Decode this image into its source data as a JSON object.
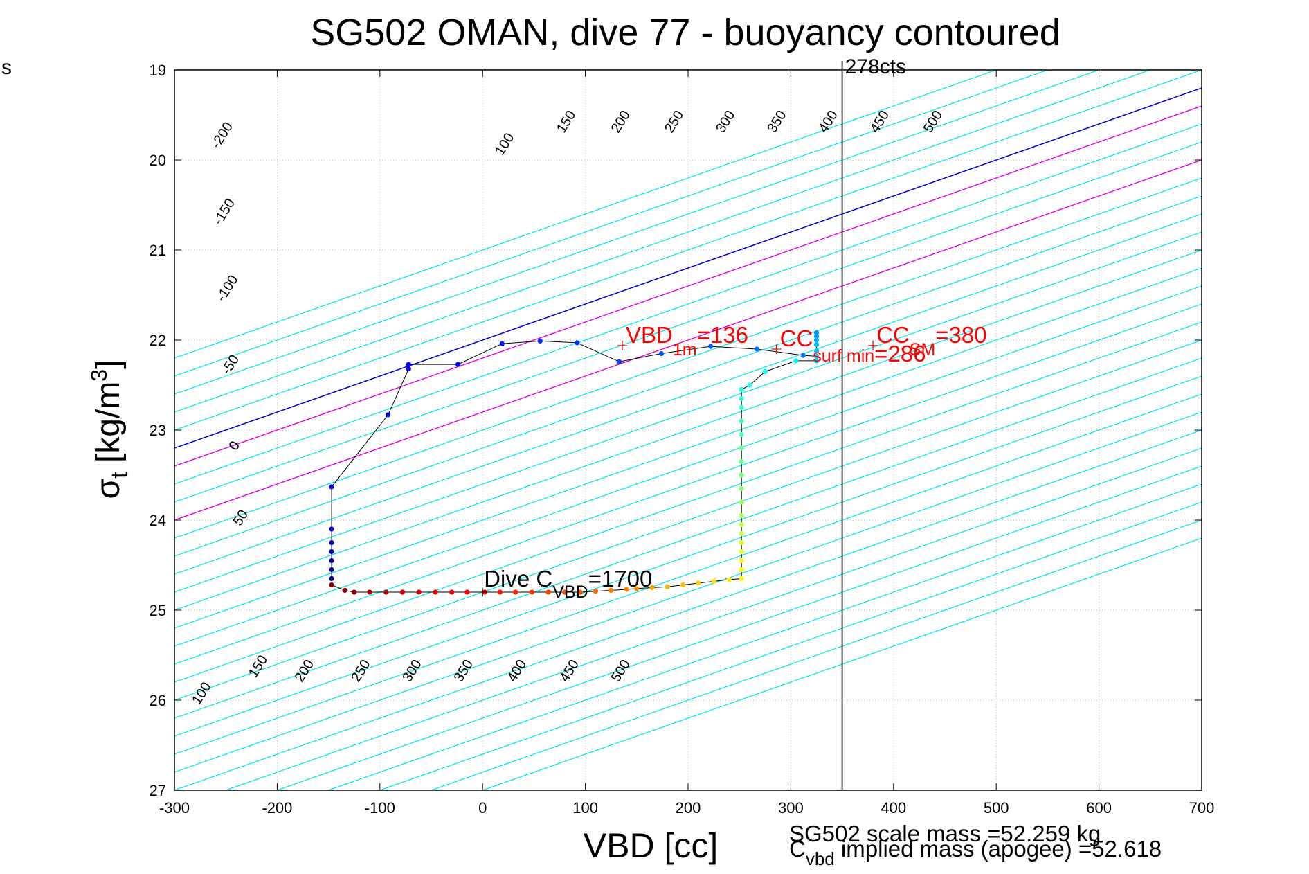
{
  "chart_data": {
    "type": "scatter",
    "title": "SG502 OMAN, dive 77 - buoyancy contoured",
    "corner_label": "s",
    "xlabel": "VBD [cc]",
    "ylabel_main": "σ",
    "ylabel_sub": "t",
    "ylabel_unit": " [kg/m",
    "ylabel_sup": "3",
    "ylabel_close": "]",
    "xlim": [
      -300,
      700
    ],
    "ylim": [
      19,
      27
    ],
    "y_reversed": true,
    "grid": true,
    "x_ticks": [
      -300,
      -200,
      -100,
      0,
      100,
      200,
      300,
      400,
      500,
      600,
      700
    ],
    "y_ticks": [
      19,
      20,
      21,
      22,
      23,
      24,
      25,
      26,
      27
    ],
    "contour_levels": [
      -250,
      -200,
      -150,
      -100,
      -50,
      0,
      50,
      100,
      150,
      200,
      250,
      300,
      350,
      400,
      450,
      500,
      550,
      600,
      650,
      700,
      750,
      800,
      850,
      900,
      950,
      1000,
      1050,
      1100,
      1150,
      1200,
      1250
    ],
    "contour_colors": {
      "default": "#00e8e8",
      "zero": "#0000cc",
      "highlight": "#e000e0",
      "highlight_levels": [
        50,
        200
      ]
    },
    "contour_labels_top": [
      {
        "text": "-200",
        "x": -250,
        "y": 19.75
      },
      {
        "text": "-150",
        "x": -248,
        "y": 20.6
      },
      {
        "text": "-100",
        "x": -245,
        "y": 21.45
      },
      {
        "text": "-50",
        "x": -242,
        "y": 22.3
      },
      {
        "text": "0",
        "x": -238,
        "y": 23.2
      },
      {
        "text": "50",
        "x": -232,
        "y": 24.0
      },
      {
        "text": "100",
        "x": 25,
        "y": 19.85
      },
      {
        "text": "150",
        "x": 85,
        "y": 19.6
      },
      {
        "text": "200",
        "x": 138,
        "y": 19.6
      },
      {
        "text": "250",
        "x": 190,
        "y": 19.6
      },
      {
        "text": "300",
        "x": 240,
        "y": 19.6
      },
      {
        "text": "350",
        "x": 290,
        "y": 19.6
      },
      {
        "text": "400",
        "x": 340,
        "y": 19.6
      },
      {
        "text": "450",
        "x": 390,
        "y": 19.6
      },
      {
        "text": "500",
        "x": 442,
        "y": 19.6
      }
    ],
    "contour_labels_bottom": [
      {
        "text": "100",
        "x": -270,
        "y": 25.95
      },
      {
        "text": "150",
        "x": -215,
        "y": 25.65
      },
      {
        "text": "200",
        "x": -170,
        "y": 25.7
      },
      {
        "text": "250",
        "x": -115,
        "y": 25.7
      },
      {
        "text": "300",
        "x": -65,
        "y": 25.7
      },
      {
        "text": "350",
        "x": -15,
        "y": 25.7
      },
      {
        "text": "400",
        "x": 37,
        "y": 25.7
      },
      {
        "text": "450",
        "x": 88,
        "y": 25.7
      },
      {
        "text": "500",
        "x": 138,
        "y": 25.7
      }
    ],
    "series": [
      {
        "points": [
          [
            -147,
            24.65
          ],
          [
            -147,
            24.55
          ],
          [
            -147,
            24.45
          ],
          [
            -147,
            24.35
          ],
          [
            -147,
            24.25
          ],
          [
            -147,
            24.1
          ],
          [
            -147,
            23.63
          ],
          [
            -92,
            22.83
          ],
          [
            -72,
            22.32
          ],
          [
            -72,
            22.27
          ],
          [
            -24,
            22.27
          ],
          [
            19,
            22.04
          ],
          [
            56,
            22.01
          ],
          [
            92,
            22.03
          ],
          [
            133,
            22.24
          ],
          [
            174,
            22.15
          ],
          [
            222,
            22.07
          ],
          [
            267,
            22.1
          ],
          [
            312,
            22.17
          ],
          [
            325,
            22.18
          ],
          [
            325,
            21.92
          ],
          [
            325,
            21.96
          ],
          [
            325,
            22.0
          ],
          [
            325,
            22.05
          ],
          [
            325,
            22.12
          ],
          [
            325,
            22.18
          ],
          [
            325,
            22.23
          ],
          [
            305,
            22.23
          ],
          [
            275,
            22.35
          ],
          [
            260,
            22.5
          ],
          [
            252,
            22.55
          ],
          [
            252,
            22.65
          ],
          [
            252,
            22.75
          ],
          [
            252,
            22.9
          ],
          [
            252,
            23.05
          ],
          [
            252,
            23.2
          ],
          [
            252,
            23.35
          ],
          [
            252,
            23.5
          ],
          [
            252,
            23.65
          ],
          [
            252,
            23.8
          ],
          [
            252,
            23.95
          ],
          [
            252,
            24.05
          ],
          [
            252,
            24.15
          ],
          [
            252,
            24.25
          ],
          [
            252,
            24.35
          ],
          [
            252,
            24.45
          ],
          [
            252,
            24.55
          ],
          [
            252,
            24.65
          ],
          [
            240,
            24.66
          ],
          [
            225,
            24.68
          ],
          [
            210,
            24.7
          ],
          [
            195,
            24.72
          ],
          [
            180,
            24.74
          ],
          [
            165,
            24.75
          ],
          [
            150,
            24.76
          ],
          [
            140,
            24.77
          ],
          [
            125,
            24.78
          ],
          [
            110,
            24.79
          ],
          [
            95,
            24.8
          ],
          [
            80,
            24.8
          ],
          [
            64,
            24.8
          ],
          [
            48,
            24.8
          ],
          [
            32,
            24.8
          ],
          [
            17,
            24.8
          ],
          [
            2,
            24.8
          ],
          [
            -15,
            24.8
          ],
          [
            -30,
            24.8
          ],
          [
            -46,
            24.8
          ],
          [
            -62,
            24.8
          ],
          [
            -78,
            24.8
          ],
          [
            -94,
            24.8
          ],
          [
            -110,
            24.8
          ],
          [
            -125,
            24.8
          ],
          [
            -134,
            24.78
          ],
          [
            -147,
            24.72
          ]
        ],
        "line_color": "#000000",
        "colormap": "jet"
      }
    ],
    "vertical_line": {
      "x": 350,
      "label": "278cts",
      "color": "#444444"
    },
    "markers": [
      {
        "text": "VBD",
        "sub": "1m",
        "tail": "=136",
        "x": 136,
        "y": 22.06,
        "color": "#ff0000"
      },
      {
        "text": "CC",
        "sub": "surf min",
        "tail": "=286",
        "x": 286,
        "y": 22.1,
        "color": "#ff0000"
      },
      {
        "text": "CC",
        "sub": "SM",
        "tail": "=380",
        "x": 380,
        "y": 22.06,
        "color": "#ff0000"
      }
    ],
    "dive_label": {
      "text": "Dive C",
      "sub": "VBD",
      "tail": "=1700",
      "x": 0,
      "y": 24.8
    },
    "footer": {
      "scale_mass": "SG502 scale mass =52.259 kg",
      "implied_main": "C",
      "implied_sub": "vbd",
      "implied_tail": " implied mass (apogee) =52.618"
    }
  }
}
